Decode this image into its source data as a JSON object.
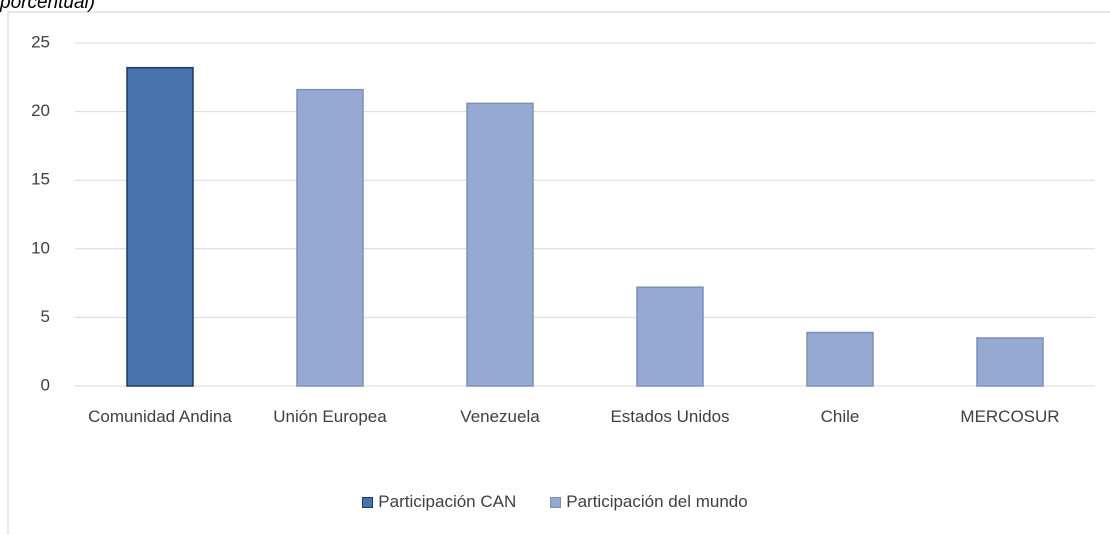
{
  "chart_data": {
    "type": "bar",
    "title": "porcentual)",
    "categories": [
      "Comunidad Andina",
      "Unión Europea",
      "Venezuela",
      "Estados Unidos",
      "Chile",
      "MERCOSUR"
    ],
    "series": [
      {
        "name": "Participación CAN",
        "color": "#4674aa",
        "values": [
          23.2,
          null,
          null,
          null,
          null,
          null
        ]
      },
      {
        "name": "Participación del mundo",
        "color": "#95a9d2",
        "values": [
          null,
          21.6,
          20.6,
          7.2,
          3.9,
          3.5
        ]
      }
    ],
    "ylim": [
      0,
      25
    ],
    "yticks": [
      0,
      5,
      10,
      15,
      20,
      25
    ],
    "grid": true,
    "legend": "bottom"
  }
}
